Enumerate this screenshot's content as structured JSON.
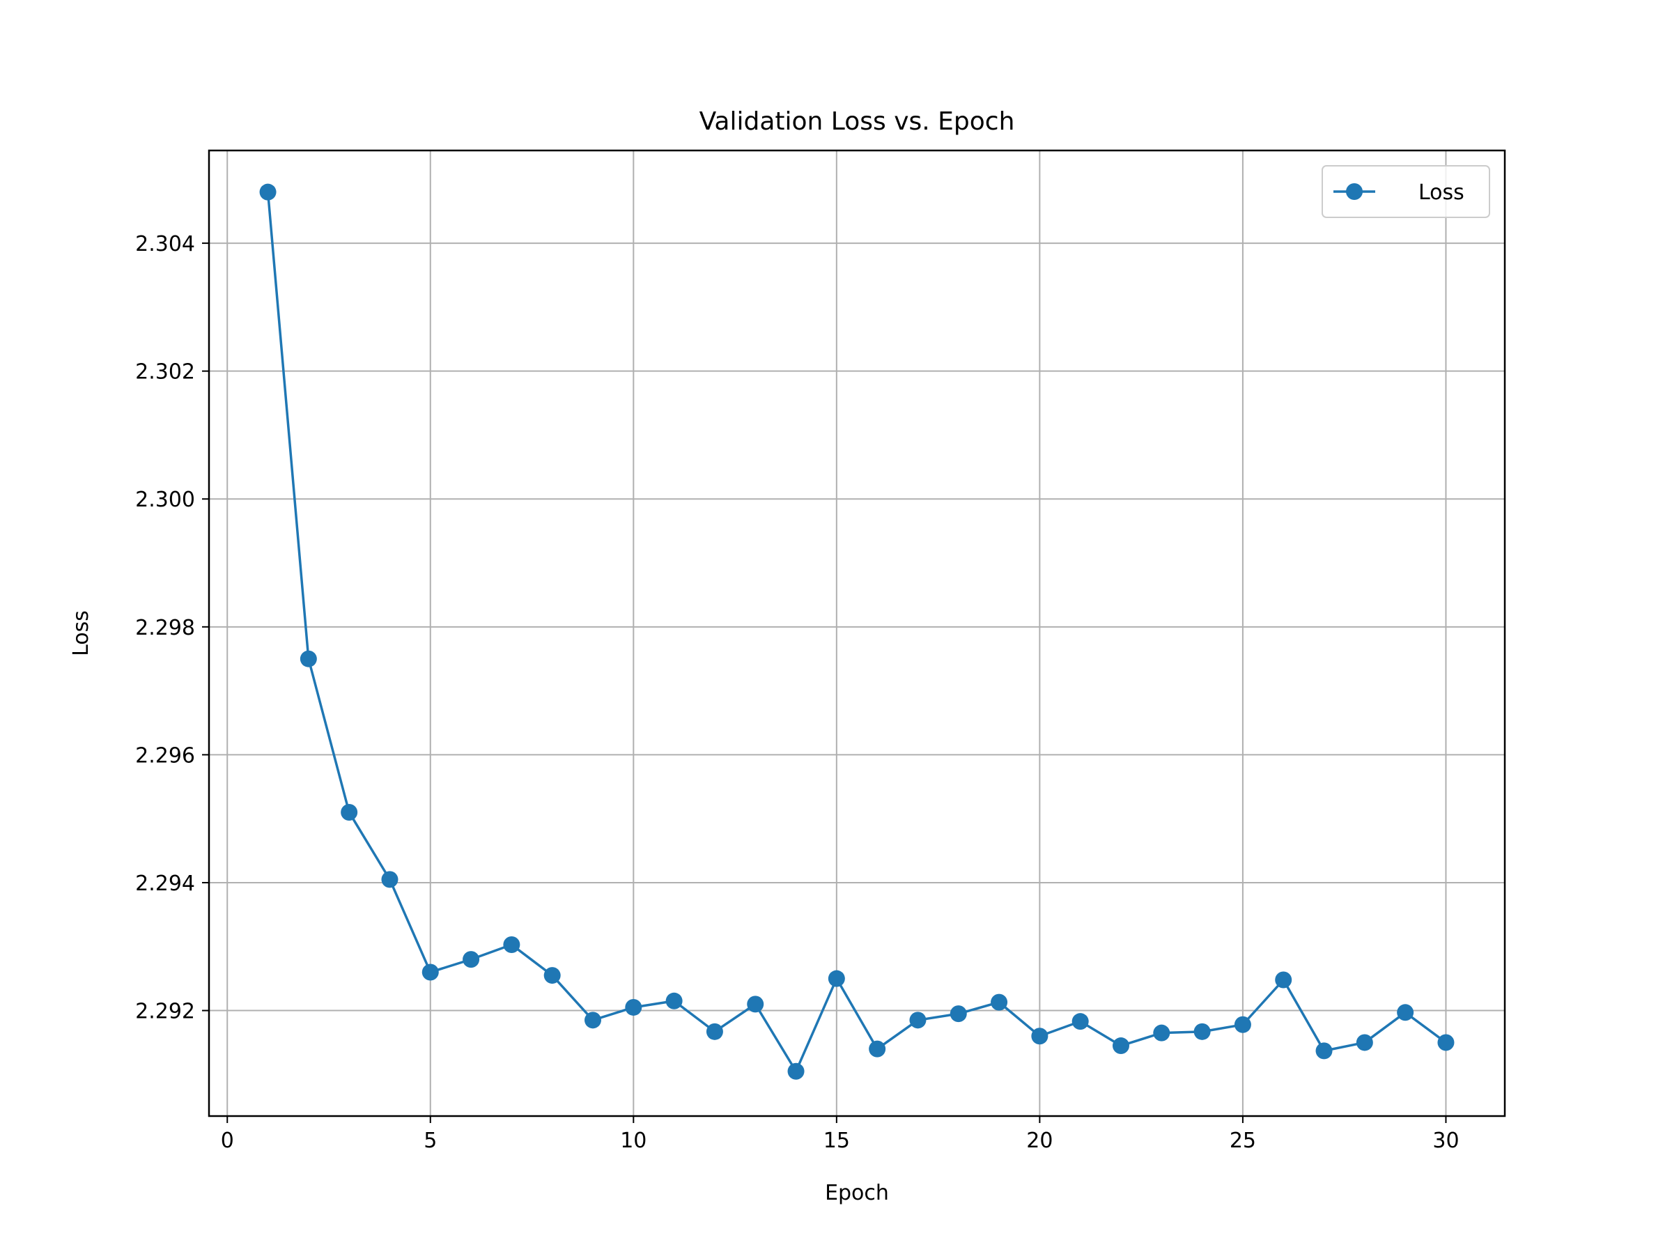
{
  "chart_data": {
    "type": "line",
    "title": "Validation Loss vs. Epoch",
    "xlabel": "Epoch",
    "ylabel": "Loss",
    "xlim": [
      -0.45,
      31.45
    ],
    "ylim": [
      2.29035,
      2.30545
    ],
    "x_ticks": [
      0,
      5,
      10,
      15,
      20,
      25,
      30
    ],
    "x_tick_labels": [
      "0",
      "5",
      "10",
      "15",
      "20",
      "25",
      "30"
    ],
    "y_ticks": [
      2.292,
      2.294,
      2.296,
      2.298,
      2.3,
      2.302,
      2.304
    ],
    "y_tick_labels": [
      "2.292",
      "2.294",
      "2.296",
      "2.298",
      "2.300",
      "2.302",
      "2.304"
    ],
    "grid": true,
    "legend_position": "top-right",
    "series": [
      {
        "name": "Loss",
        "color": "#1f77b4",
        "marker": "circle",
        "x": [
          1,
          2,
          3,
          4,
          5,
          6,
          7,
          8,
          9,
          10,
          11,
          12,
          13,
          14,
          15,
          16,
          17,
          18,
          19,
          20,
          21,
          22,
          23,
          24,
          25,
          26,
          27,
          28,
          29,
          30
        ],
        "values": [
          2.3048,
          2.2975,
          2.2951,
          2.29405,
          2.2926,
          2.2928,
          2.29303,
          2.29255,
          2.29185,
          2.29205,
          2.29215,
          2.29167,
          2.2921,
          2.29105,
          2.2925,
          2.2914,
          2.29185,
          2.29195,
          2.29213,
          2.2916,
          2.29183,
          2.29145,
          2.29165,
          2.29167,
          2.29178,
          2.29248,
          2.29137,
          2.2915,
          2.29197,
          2.2915
        ]
      }
    ]
  }
}
